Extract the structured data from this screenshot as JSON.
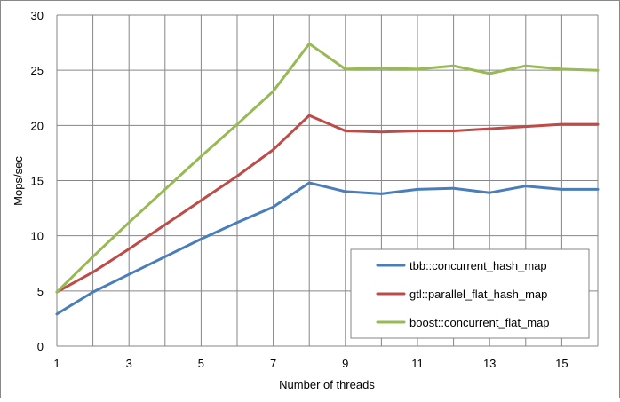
{
  "chart_data": {
    "type": "line",
    "xlabel": "Number of threads",
    "ylabel": "Mops/sec",
    "xlim": [
      1,
      16
    ],
    "ylim": [
      0,
      30
    ],
    "x_ticks": [
      1,
      3,
      5,
      7,
      9,
      11,
      13,
      15
    ],
    "y_ticks": [
      0,
      5,
      10,
      15,
      20,
      25,
      30
    ],
    "grid": true,
    "legend_position": "bottom-right",
    "x": [
      1,
      2,
      3,
      4,
      5,
      6,
      7,
      8,
      9,
      10,
      11,
      12,
      13,
      14,
      15,
      16
    ],
    "series": [
      {
        "name": "tbb::concurrent_hash_map",
        "color": "#4a7ebb",
        "values": [
          2.9,
          4.9,
          6.5,
          8.1,
          9.7,
          11.2,
          12.6,
          14.8,
          14.0,
          13.8,
          14.2,
          14.3,
          13.9,
          14.5,
          14.2,
          14.2
        ]
      },
      {
        "name": "gtl::parallel_flat_hash_map",
        "color": "#be4b48",
        "values": [
          4.9,
          6.7,
          8.8,
          11.0,
          13.2,
          15.4,
          17.8,
          20.9,
          19.5,
          19.4,
          19.5,
          19.5,
          19.7,
          19.9,
          20.1,
          20.1
        ]
      },
      {
        "name": "boost::concurrent_flat_map",
        "color": "#98b954",
        "values": [
          4.9,
          8.1,
          11.2,
          14.2,
          17.2,
          20.1,
          23.1,
          27.4,
          25.1,
          25.2,
          25.1,
          25.4,
          24.7,
          25.4,
          25.1,
          25.0
        ]
      }
    ]
  }
}
